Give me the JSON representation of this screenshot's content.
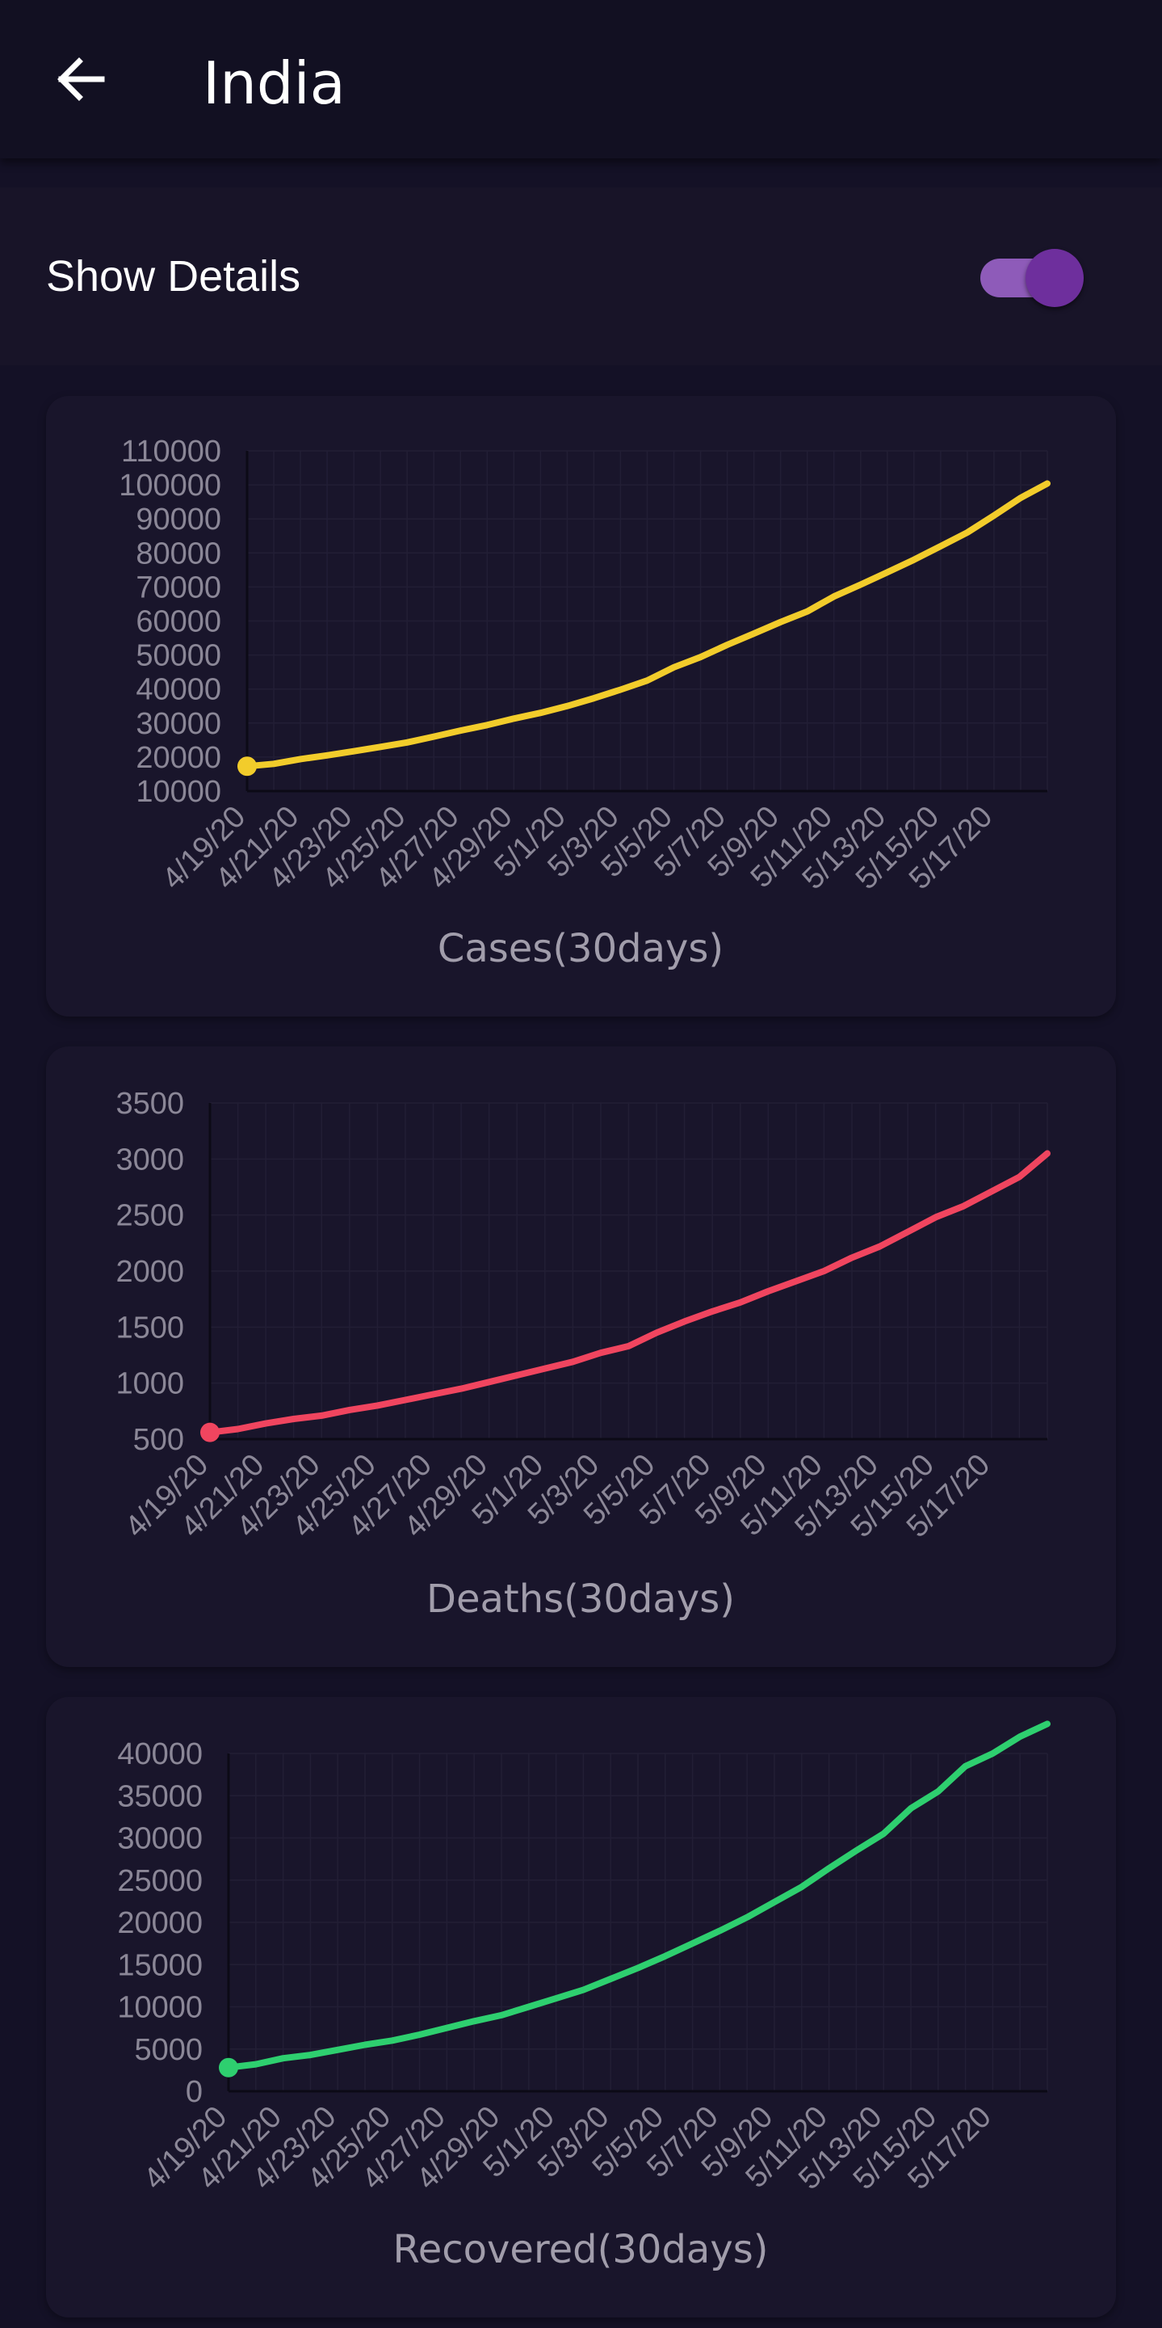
{
  "header": {
    "title": "India",
    "back_icon": "arrow-left-icon"
  },
  "details": {
    "label": "Show Details",
    "toggle_on": true
  },
  "colors": {
    "cases": "#f2cc2b",
    "deaths": "#f0455f",
    "recovered": "#2ecf6f",
    "toggle_track": "#8e5bb9",
    "toggle_thumb": "#6e2f9d"
  },
  "chart_data": [
    {
      "type": "line",
      "xlabel": "Cases(30days)",
      "ylabel": "",
      "xticks": [
        "4/19/20",
        "4/21/20",
        "4/23/20",
        "4/25/20",
        "4/27/20",
        "4/29/20",
        "5/1/20",
        "5/3/20",
        "5/5/20",
        "5/7/20",
        "5/9/20",
        "5/11/20",
        "5/13/20",
        "5/15/20",
        "5/17/20"
      ],
      "yticks": [
        "110000",
        "100000",
        "90000",
        "80000",
        "70000",
        "60000",
        "50000",
        "40000",
        "30000",
        "20000",
        "10000"
      ],
      "ylim": [
        10000,
        110000
      ],
      "grid": true,
      "color": "#f2cc2b",
      "x": [
        "4/19/20",
        "4/20/20",
        "4/21/20",
        "4/22/20",
        "4/23/20",
        "4/24/20",
        "4/25/20",
        "4/26/20",
        "4/27/20",
        "4/28/20",
        "4/29/20",
        "4/30/20",
        "5/1/20",
        "5/2/20",
        "5/3/20",
        "5/4/20",
        "5/5/20",
        "5/6/20",
        "5/7/20",
        "5/8/20",
        "5/9/20",
        "5/10/20",
        "5/11/20",
        "5/12/20",
        "5/13/20",
        "5/14/20",
        "5/15/20",
        "5/16/20",
        "5/17/20",
        "5/18/20",
        "5/19/20"
      ],
      "values": [
        17300,
        18000,
        19400,
        20500,
        21700,
        23000,
        24300,
        26000,
        27800,
        29400,
        31300,
        33000,
        35000,
        37300,
        39800,
        42500,
        46400,
        49400,
        53000,
        56300,
        59700,
        62800,
        67200,
        70700,
        74300,
        78000,
        82000,
        86000,
        91000,
        96200,
        100400
      ]
    },
    {
      "type": "line",
      "xlabel": "Deaths(30days)",
      "ylabel": "",
      "xticks": [
        "4/19/20",
        "4/21/20",
        "4/23/20",
        "4/25/20",
        "4/27/20",
        "4/29/20",
        "5/1/20",
        "5/3/20",
        "5/5/20",
        "5/7/20",
        "5/9/20",
        "5/11/20",
        "5/13/20",
        "5/15/20",
        "5/17/20"
      ],
      "yticks": [
        "3500",
        "3000",
        "2500",
        "2000",
        "1500",
        "1000",
        "500"
      ],
      "ylim": [
        500,
        3500
      ],
      "grid": true,
      "color": "#f0455f",
      "x": [
        "4/19/20",
        "4/20/20",
        "4/21/20",
        "4/22/20",
        "4/23/20",
        "4/24/20",
        "4/25/20",
        "4/26/20",
        "4/27/20",
        "4/28/20",
        "4/29/20",
        "4/30/20",
        "5/1/20",
        "5/2/20",
        "5/3/20",
        "5/4/20",
        "5/5/20",
        "5/6/20",
        "5/7/20",
        "5/8/20",
        "5/9/20",
        "5/10/20",
        "5/11/20",
        "5/12/20",
        "5/13/20",
        "5/14/20",
        "5/15/20",
        "5/16/20",
        "5/17/20",
        "5/18/20",
        "5/19/20"
      ],
      "values": [
        560,
        590,
        640,
        680,
        710,
        760,
        800,
        850,
        900,
        950,
        1010,
        1070,
        1130,
        1190,
        1270,
        1330,
        1450,
        1550,
        1640,
        1720,
        1820,
        1910,
        2000,
        2120,
        2220,
        2350,
        2480,
        2580,
        2710,
        2840,
        3050
      ]
    },
    {
      "type": "line",
      "xlabel": "Recovered(30days)",
      "ylabel": "",
      "xticks": [
        "4/19/20",
        "4/21/20",
        "4/23/20",
        "4/25/20",
        "4/27/20",
        "4/29/20",
        "5/1/20",
        "5/3/20",
        "5/5/20",
        "5/7/20",
        "5/9/20",
        "5/11/20",
        "5/13/20",
        "5/15/20",
        "5/17/20"
      ],
      "yticks": [
        "40000",
        "35000",
        "30000",
        "25000",
        "20000",
        "15000",
        "10000",
        "5000",
        "0"
      ],
      "ylim": [
        0,
        40000
      ],
      "grid": true,
      "color": "#2ecf6f",
      "x": [
        "4/19/20",
        "4/20/20",
        "4/21/20",
        "4/22/20",
        "4/23/20",
        "4/24/20",
        "4/25/20",
        "4/26/20",
        "4/27/20",
        "4/28/20",
        "4/29/20",
        "4/30/20",
        "5/1/20",
        "5/2/20",
        "5/3/20",
        "5/4/20",
        "5/5/20",
        "5/6/20",
        "5/7/20",
        "5/8/20",
        "5/9/20",
        "5/10/20",
        "5/11/20",
        "5/12/20",
        "5/13/20",
        "5/14/20",
        "5/15/20",
        "5/16/20",
        "5/17/20",
        "5/18/20",
        "5/19/20"
      ],
      "values": [
        2800,
        3200,
        3900,
        4300,
        4900,
        5500,
        6000,
        6700,
        7500,
        8300,
        9000,
        10000,
        11000,
        12000,
        13300,
        14600,
        16000,
        17500,
        19000,
        20600,
        22400,
        24200,
        26400,
        28500,
        30500,
        33500,
        35500,
        38500,
        40000,
        42000,
        43500
      ]
    }
  ]
}
